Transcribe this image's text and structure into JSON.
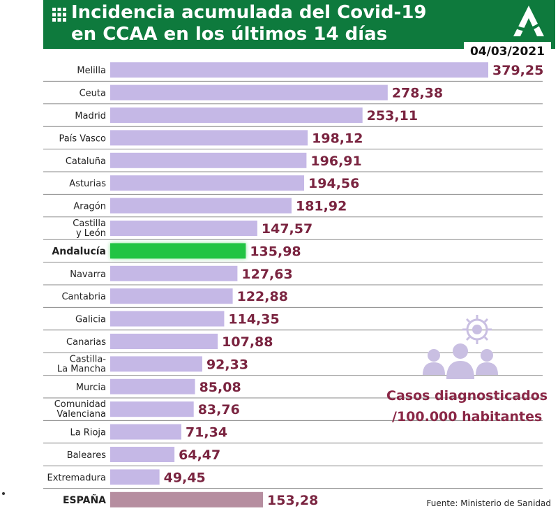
{
  "header": {
    "title_line1": "Incidencia acumulada del Covid-19",
    "title_line2": "en CCAA en los últimos 14 días",
    "date": "04/03/2021"
  },
  "legend": {
    "line1": "Casos diagnosticados",
    "line2": "/100.000 habitantes"
  },
  "source": "Fuente: Ministerio de Sanidad",
  "colors": {
    "header_green": "#0e7a3d",
    "bar_default": "#c5b8e6",
    "bar_highlight": "#21c443",
    "bar_total": "#b68ea0",
    "value_text": "#7a2440"
  },
  "chart_data": {
    "type": "bar",
    "orientation": "horizontal",
    "categories": [
      "Melilla",
      "Ceuta",
      "Madrid",
      "País Vasco",
      "Cataluña",
      "Asturias",
      "Aragón",
      "Castilla\ny León",
      "Andalucía",
      "Navarra",
      "Cantabria",
      "Galicia",
      "Canarias",
      "Castilla-\nLa Mancha",
      "Murcia",
      "Comunidad\nValenciana",
      "La Rioja",
      "Baleares",
      "Extremadura",
      "ESPAÑA"
    ],
    "values": [
      379.25,
      278.38,
      253.11,
      198.12,
      196.91,
      194.56,
      181.92,
      147.57,
      135.98,
      127.63,
      122.88,
      114.35,
      107.88,
      92.33,
      85.08,
      83.76,
      71.34,
      64.47,
      49.45,
      153.28
    ],
    "value_labels": [
      "379,25",
      "278,38",
      "253,11",
      "198,12",
      "196,91",
      "194,56",
      "181,92",
      "147,57",
      "135,98",
      "127,63",
      "122,88",
      "114,35",
      "107,88",
      "92,33",
      "85,08",
      "83,76",
      "71,34",
      "64,47",
      "49,45",
      "153,28"
    ],
    "highlighted": [
      "Andalucía"
    ],
    "bold_categories": [
      "Andalucía",
      "ESPAÑA"
    ],
    "total_category": "ESPAÑA",
    "xlim": [
      0,
      379.25
    ]
  }
}
